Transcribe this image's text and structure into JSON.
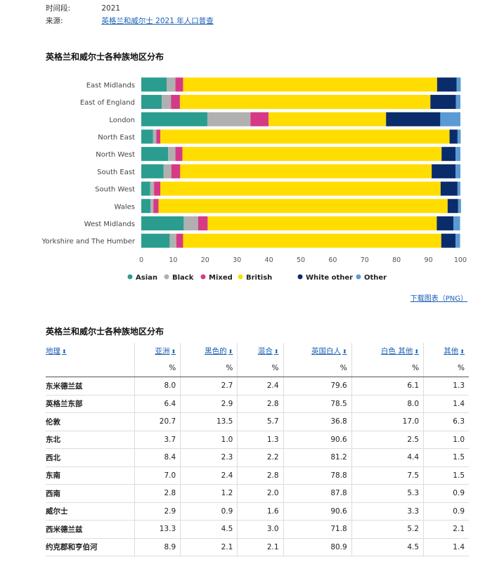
{
  "meta": {
    "period_label": "时间段:",
    "period_value": "2021",
    "source_label": "来源:",
    "source_link": "英格兰和威尔士 2021 年人口普查"
  },
  "chart_section_title": "英格兰和威尔士各种族地区分布",
  "download_link": "下载图表（PNG）",
  "table_title": "英格兰和威尔士各种族地区分布",
  "colors": {
    "asian": "#2a9d8f",
    "black": "#b0b0b0",
    "mixed": "#d63a86",
    "white_british": "#ffdd00",
    "white_other": "#0b2c6b",
    "other": "#5b9bd5"
  },
  "chart_data": {
    "type": "bar",
    "orientation": "horizontal",
    "stacked": true,
    "categories": [
      "East Midlands",
      "East of England",
      "London",
      "North East",
      "North West",
      "South East",
      "South West",
      "Wales",
      "West Midlands",
      "Yorkshire and The Humber"
    ],
    "series": [
      {
        "name": "Asian",
        "values": [
          8.0,
          6.4,
          20.7,
          3.7,
          8.4,
          7.0,
          2.8,
          2.9,
          13.3,
          8.9
        ],
        "color": "#2a9d8f"
      },
      {
        "name": "Black",
        "values": [
          2.7,
          2.9,
          13.5,
          1.0,
          2.3,
          2.4,
          1.2,
          0.9,
          4.5,
          2.1
        ],
        "color": "#b0b0b0"
      },
      {
        "name": "Mixed",
        "values": [
          2.4,
          2.8,
          5.7,
          1.3,
          2.2,
          2.8,
          2.0,
          1.6,
          3.0,
          2.1
        ],
        "color": "#d63a86"
      },
      {
        "name": "British",
        "values": [
          79.6,
          78.5,
          36.8,
          90.6,
          81.2,
          78.8,
          87.8,
          90.6,
          71.8,
          80.9
        ],
        "color": "#ffdd00"
      },
      {
        "name": "White other",
        "values": [
          6.1,
          8.0,
          17.0,
          2.5,
          4.4,
          7.5,
          5.3,
          3.3,
          5.2,
          4.5
        ],
        "color": "#0b2c6b"
      },
      {
        "name": "Other",
        "values": [
          1.3,
          1.4,
          6.3,
          1.0,
          1.5,
          1.5,
          0.9,
          0.9,
          2.1,
          1.4
        ],
        "color": "#5b9bd5"
      }
    ],
    "xlim": [
      0,
      100
    ],
    "xticks": [
      "0",
      "10",
      "20",
      "30",
      "40",
      "50",
      "60",
      "70",
      "80",
      "90",
      "100"
    ],
    "legend_placement": "bottom"
  },
  "table": {
    "headers": [
      "地理",
      "亚洲",
      "黑色的",
      "混合",
      "英国白人",
      "白色 其他",
      "其他"
    ],
    "units": [
      "",
      "%",
      "%",
      "%",
      "%",
      "%",
      "%"
    ],
    "rows": [
      [
        "东米德兰兹",
        "8.0",
        "2.7",
        "2.4",
        "79.6",
        "6.1",
        "1.3"
      ],
      [
        "英格兰东部",
        "6.4",
        "2.9",
        "2.8",
        "78.5",
        "8.0",
        "1.4"
      ],
      [
        "伦敦",
        "20.7",
        "13.5",
        "5.7",
        "36.8",
        "17.0",
        "6.3"
      ],
      [
        "东北",
        "3.7",
        "1.0",
        "1.3",
        "90.6",
        "2.5",
        "1.0"
      ],
      [
        "西北",
        "8.4",
        "2.3",
        "2.2",
        "81.2",
        "4.4",
        "1.5"
      ],
      [
        "东南",
        "7.0",
        "2.4",
        "2.8",
        "78.8",
        "7.5",
        "1.5"
      ],
      [
        "西南",
        "2.8",
        "1.2",
        "2.0",
        "87.8",
        "5.3",
        "0.9"
      ],
      [
        "威尔士",
        "2.9",
        "0.9",
        "1.6",
        "90.6",
        "3.3",
        "0.9"
      ],
      [
        "西米德兰兹",
        "13.3",
        "4.5",
        "3.0",
        "71.8",
        "5.2",
        "2.1"
      ],
      [
        "约克郡和亨伯河",
        "8.9",
        "2.1",
        "2.1",
        "80.9",
        "4.5",
        "1.4"
      ]
    ]
  }
}
